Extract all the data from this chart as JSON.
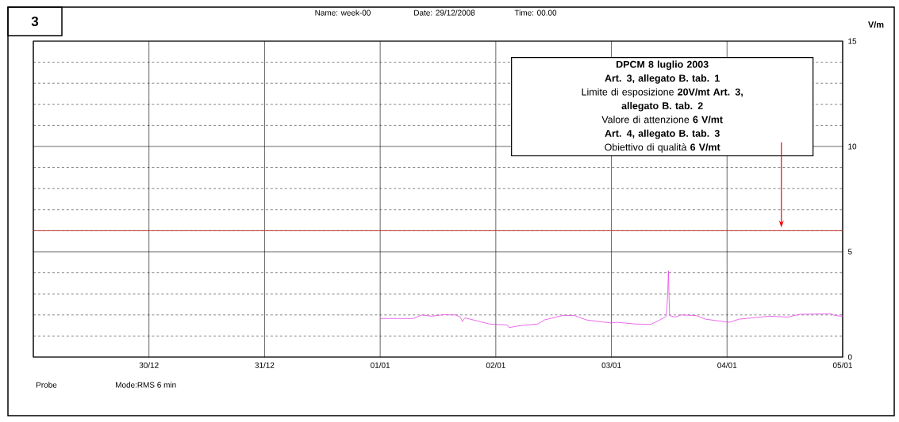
{
  "chart_data": {
    "type": "line",
    "title": "3",
    "ylabel": "V/m",
    "annotations": [
      "Name: week-00",
      "Date: 29/12/2008",
      "Time: 00.00",
      "DPCM 8 luglio 2003",
      "Art. 3,  allegato B.  tab. 1",
      "Limite di esposizione  **20V/mt Art. 3,**",
      "allegato B.  tab. 2",
      "Valore di attenzione     **6 V/mt**",
      "Art. 4,  allegato B.  tab. 3",
      "Obiettivo di qualità     **6 V/mt**",
      "Probe",
      "Mode:RMS  6 min"
    ],
    "x": [
      "2009-01-01T00:00",
      "2009-01-01T06:50",
      "2009-01-01T08:44",
      "2009-01-01T10:38",
      "2009-01-01T13:09",
      "2009-01-01T15:40",
      "2009-01-01T16:38",
      "2009-01-01T17:04",
      "2009-01-01T17:35",
      "2009-01-01T20:07",
      "2009-01-01T22:38",
      "2009-01-02T00:24",
      "2009-01-02T02:25",
      "2009-01-02T02:46",
      "2009-01-02T04:58",
      "2009-01-02T08:46",
      "2009-01-02T10:02",
      "2009-01-02T13:49",
      "2009-01-02T16:21",
      "2009-01-02T18:53",
      "2009-01-02T21:24",
      "2009-01-02T23:56",
      "2009-01-03T01:12",
      "2009-01-03T05:00",
      "2009-01-03T08:10",
      "2009-01-03T10:03",
      "2009-01-03T11:20",
      "2009-01-03T11:31",
      "2009-01-03T11:41",
      "2009-01-03T11:50",
      "2009-01-03T11:57",
      "2009-01-03T12:04",
      "2009-01-03T13:13",
      "2009-01-03T14:28",
      "2009-01-03T17:38",
      "2009-01-03T19:32",
      "2009-01-03T22:05",
      "2009-01-04T00:29",
      "2009-01-04T02:30",
      "2009-01-04T08:50",
      "2009-01-04T12:37",
      "2009-01-04T15:09",
      "2009-01-04T21:29",
      "2009-01-04T22:25",
      "2009-01-05T00:00"
    ],
    "series": [
      {
        "color": "#e645e6",
        "values": [
          1.83,
          1.83,
          2.0,
          1.94,
          2.01,
          2.0,
          1.9,
          1.69,
          1.86,
          1.72,
          1.57,
          1.55,
          1.52,
          1.4,
          1.49,
          1.57,
          1.76,
          1.97,
          1.97,
          1.76,
          1.69,
          1.62,
          1.65,
          1.57,
          1.55,
          1.76,
          1.93,
          2.4,
          2.96,
          4.1,
          2.96,
          1.97,
          1.9,
          2.0,
          1.97,
          1.8,
          1.72,
          1.65,
          1.8,
          1.94,
          1.9,
          2.03,
          2.06,
          1.97,
          1.94
        ]
      }
    ],
    "xlim": [
      "2008-12-29",
      "2009-01-05"
    ],
    "xticks": [
      {
        "value": "2008-12-29",
        "label": null
      },
      {
        "value": "2008-12-30",
        "label": "30/12"
      },
      {
        "value": "2008-12-31",
        "label": "31/12"
      },
      {
        "value": "2009-01-01",
        "label": "01/01"
      },
      {
        "value": "2009-01-02",
        "label": "02/01"
      },
      {
        "value": "2009-01-03",
        "label": "03/01"
      },
      {
        "value": "2009-01-04",
        "label": "04/01"
      },
      {
        "value": "2009-01-05",
        "label": "05/01"
      }
    ],
    "ylim": [
      0,
      15
    ],
    "yticks": [
      0,
      5,
      10,
      15
    ],
    "grid": true,
    "ref_lines": [
      {
        "axis": "y",
        "value": 6,
        "color": "#c0302a"
      }
    ]
  }
}
